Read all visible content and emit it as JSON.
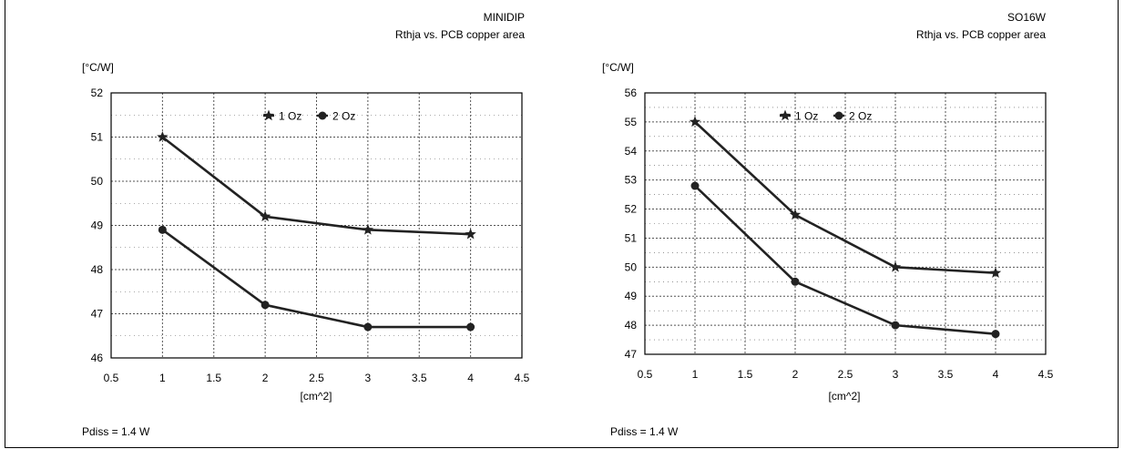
{
  "chart_data": [
    {
      "type": "line",
      "title": "MINIDIP",
      "subtitle": "Rthja vs. PCB copper area",
      "ylabel": "[°C/W]",
      "xlabel": "[cm^2]",
      "note": "Pdiss = 1.4 W",
      "xlim": [
        0.5,
        4.5
      ],
      "ylim": [
        46,
        52
      ],
      "xticks": [
        "0.5",
        "1",
        "1.5",
        "2",
        "2.5",
        "3",
        "3.5",
        "4",
        "4.5"
      ],
      "yticks": [
        "46",
        "47",
        "48",
        "49",
        "50",
        "51",
        "52"
      ],
      "grid": true,
      "legend_position": "top-center",
      "x": [
        1,
        2,
        3,
        4
      ],
      "series": [
        {
          "name": "1 Oz",
          "marker": "star",
          "values": [
            51.0,
            49.2,
            48.9,
            48.8
          ]
        },
        {
          "name": "2 Oz",
          "marker": "circle",
          "values": [
            48.9,
            47.2,
            46.7,
            46.7
          ]
        }
      ]
    },
    {
      "type": "line",
      "title": "SO16W",
      "subtitle": "Rthja vs. PCB copper area",
      "ylabel": "[°C/W]",
      "xlabel": "[cm^2]",
      "note": "Pdiss = 1.4 W",
      "xlim": [
        0.5,
        4.5
      ],
      "ylim": [
        47,
        56
      ],
      "xticks": [
        "0.5",
        "1",
        "1.5",
        "2",
        "2.5",
        "3",
        "3.5",
        "4",
        "4.5"
      ],
      "yticks": [
        "47",
        "48",
        "49",
        "50",
        "51",
        "52",
        "53",
        "54",
        "55",
        "56"
      ],
      "grid": true,
      "legend_position": "top-center",
      "x": [
        1,
        2,
        3,
        4
      ],
      "series": [
        {
          "name": "1 Oz",
          "marker": "star",
          "values": [
            55.0,
            51.8,
            50.0,
            49.8
          ]
        },
        {
          "name": "2 Oz",
          "marker": "circle",
          "values": [
            52.8,
            49.5,
            48.0,
            47.7
          ]
        }
      ]
    }
  ],
  "colors": {
    "line": "#222222",
    "grid": "#555555",
    "frame": "#000000"
  }
}
